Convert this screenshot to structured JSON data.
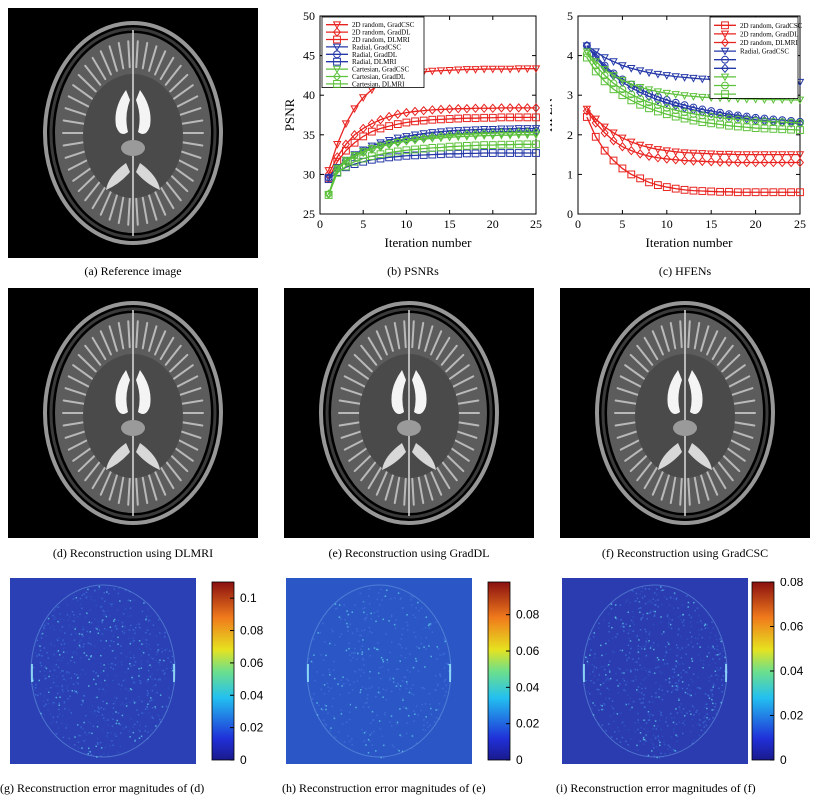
{
  "captions": {
    "a": "(a) Reference image",
    "b": "(b) PSNRs",
    "c": "(c) HFENs",
    "d": "(d) Reconstruction using DLMRI",
    "e": "(e) Reconstruction using GradDL",
    "f": "(f) Reconstruction using GradCSC",
    "g": "(g) Reconstruction error magnitudes of (d)",
    "h": "(h) Reconstruction error magnitudes of (e)",
    "i": "(i) Reconstruction error magnitudes of (f)"
  },
  "colors": {
    "red": "#e8231f",
    "blue": "#2438a8",
    "green": "#5cc13a"
  },
  "colorbars": {
    "g": {
      "ticks": [
        "0.1",
        "0.08",
        "0.06",
        "0.04",
        "0.02",
        "0"
      ],
      "max": 0.11
    },
    "h": {
      "ticks": [
        "0.08",
        "0.06",
        "0.04",
        "0.02",
        "0"
      ],
      "max": 0.098
    },
    "i": {
      "ticks": [
        "0.08",
        "0.06",
        "0.04",
        "0.02",
        "0"
      ],
      "max": 0.08
    }
  },
  "chart_data": [
    {
      "type": "line",
      "xlabel": "Iteration number",
      "ylabel": "PSNR",
      "xlim": [
        0,
        25
      ],
      "ylim": [
        25,
        50
      ],
      "xticks": [
        "0",
        "5",
        "10",
        "15",
        "20",
        "25"
      ],
      "yticks": [
        "25",
        "30",
        "35",
        "40",
        "45",
        "50"
      ],
      "legend_position": "top-left",
      "x": [
        1,
        2,
        3,
        4,
        5,
        6,
        7,
        8,
        9,
        10,
        11,
        12,
        13,
        14,
        15,
        16,
        17,
        18,
        19,
        20,
        21,
        22,
        23,
        24,
        25
      ],
      "series": [
        {
          "name": "2D random, GradCSC",
          "color": "red",
          "marker": "triangle-down",
          "values": [
            30.5,
            33.8,
            36.4,
            38.3,
            39.7,
            40.7,
            41.4,
            41.9,
            42.3,
            42.6,
            42.8,
            42.95,
            43.05,
            43.1,
            43.15,
            43.2,
            43.25,
            43.25,
            43.3,
            43.3,
            43.3,
            43.3,
            43.35,
            43.35,
            43.35
          ]
        },
        {
          "name": "2D random, GradDL",
          "color": "red",
          "marker": "diamond",
          "values": [
            30.0,
            32.2,
            33.8,
            35.0,
            35.8,
            36.4,
            36.9,
            37.3,
            37.6,
            37.8,
            37.95,
            38.05,
            38.15,
            38.2,
            38.25,
            38.3,
            38.3,
            38.35,
            38.35,
            38.35,
            38.4,
            38.4,
            38.4,
            38.4,
            38.4
          ]
        },
        {
          "name": "2D random, DLMRI",
          "color": "red",
          "marker": "square",
          "values": [
            29.5,
            31.6,
            33.0,
            34.0,
            34.8,
            35.4,
            35.8,
            36.1,
            36.35,
            36.55,
            36.7,
            36.8,
            36.9,
            36.95,
            37.0,
            37.05,
            37.1,
            37.1,
            37.15,
            37.15,
            37.2,
            37.2,
            37.2,
            37.2,
            37.2
          ]
        },
        {
          "name": "Radial, GradCSC",
          "color": "blue",
          "marker": "triangle-down",
          "values": [
            29.6,
            30.9,
            31.8,
            32.5,
            33.1,
            33.6,
            34.0,
            34.3,
            34.6,
            34.8,
            35.0,
            35.15,
            35.3,
            35.4,
            35.5,
            35.55,
            35.6,
            35.65,
            35.7,
            35.7,
            35.75,
            35.75,
            35.8,
            35.8,
            35.8
          ]
        },
        {
          "name": "Radial, GradDL",
          "color": "blue",
          "marker": "circle",
          "values": [
            29.6,
            30.8,
            31.7,
            32.4,
            32.9,
            33.3,
            33.7,
            34.0,
            34.2,
            34.45,
            34.6,
            34.75,
            34.9,
            35.0,
            35.1,
            35.15,
            35.2,
            35.25,
            35.3,
            35.35,
            35.4,
            35.4,
            35.45,
            35.45,
            35.5
          ]
        },
        {
          "name": "Radial, DLMRI",
          "color": "blue",
          "marker": "square",
          "values": [
            29.4,
            30.3,
            30.9,
            31.3,
            31.6,
            31.85,
            32.0,
            32.15,
            32.25,
            32.35,
            32.4,
            32.45,
            32.5,
            32.55,
            32.6,
            32.6,
            32.65,
            32.65,
            32.7,
            32.7,
            32.7,
            32.7,
            32.7,
            32.7,
            32.7
          ]
        },
        {
          "name": "Cartesian, GradCSC",
          "color": "green",
          "marker": "triangle-down",
          "values": [
            27.5,
            30.8,
            31.8,
            32.4,
            32.9,
            33.3,
            33.6,
            33.85,
            34.05,
            34.2,
            34.35,
            34.45,
            34.55,
            34.6,
            34.7,
            34.75,
            34.8,
            34.85,
            34.9,
            34.9,
            34.95,
            34.95,
            35.0,
            35.0,
            35.0
          ]
        },
        {
          "name": "Cartesian, GradDL",
          "color": "green",
          "marker": "diamond",
          "values": [
            27.5,
            30.6,
            31.6,
            32.3,
            32.8,
            33.2,
            33.5,
            33.8,
            34.05,
            34.25,
            34.4,
            34.55,
            34.7,
            34.8,
            34.9,
            35.0,
            35.05,
            35.1,
            35.15,
            35.2,
            35.25,
            35.25,
            35.3,
            35.3,
            35.3
          ]
        },
        {
          "name": "Cartesian, DLMRI",
          "color": "green",
          "marker": "square",
          "values": [
            27.4,
            30.2,
            31.0,
            31.6,
            32.0,
            32.3,
            32.55,
            32.75,
            32.9,
            33.05,
            33.15,
            33.25,
            33.35,
            33.4,
            33.5,
            33.55,
            33.6,
            33.65,
            33.7,
            33.7,
            33.75,
            33.75,
            33.8,
            33.8,
            33.8
          ]
        }
      ]
    },
    {
      "type": "line",
      "xlabel": "Iteration number",
      "ylabel": "HFEN",
      "xlim": [
        0,
        25
      ],
      "ylim": [
        0,
        5
      ],
      "xticks": [
        "0",
        "5",
        "10",
        "15",
        "20",
        "25"
      ],
      "yticks": [
        "0",
        "1",
        "2",
        "3",
        "4",
        "5"
      ],
      "legend_position": "top-right",
      "x": [
        1,
        2,
        3,
        4,
        5,
        6,
        7,
        8,
        9,
        10,
        11,
        12,
        13,
        14,
        15,
        16,
        17,
        18,
        19,
        20,
        21,
        22,
        23,
        24,
        25
      ],
      "series": [
        {
          "name": "2D random, GradCSC",
          "color": "red",
          "marker": "square",
          "values": [
            2.45,
            1.95,
            1.6,
            1.35,
            1.15,
            1.0,
            0.9,
            0.8,
            0.73,
            0.68,
            0.64,
            0.61,
            0.59,
            0.58,
            0.57,
            0.56,
            0.56,
            0.55,
            0.55,
            0.55,
            0.55,
            0.55,
            0.55,
            0.55,
            0.55
          ]
        },
        {
          "name": "2D random, GradDL",
          "color": "red",
          "marker": "triangle-down",
          "values": [
            2.65,
            2.4,
            2.2,
            2.05,
            1.92,
            1.82,
            1.74,
            1.68,
            1.63,
            1.6,
            1.57,
            1.55,
            1.54,
            1.53,
            1.52,
            1.51,
            1.51,
            1.5,
            1.5,
            1.5,
            1.5,
            1.5,
            1.5,
            1.5,
            1.5
          ]
        },
        {
          "name": "2D random, DLMRI",
          "color": "red",
          "marker": "diamond",
          "values": [
            2.6,
            2.3,
            2.05,
            1.85,
            1.7,
            1.6,
            1.52,
            1.46,
            1.42,
            1.39,
            1.37,
            1.35,
            1.34,
            1.33,
            1.32,
            1.31,
            1.31,
            1.3,
            1.3,
            1.3,
            1.3,
            1.3,
            1.3,
            1.3,
            1.3
          ]
        },
        {
          "name": "Radial, GradCSC",
          "color": "blue",
          "marker": "triangle-down",
          "values": [
            4.25,
            4.1,
            3.95,
            3.85,
            3.75,
            3.68,
            3.62,
            3.57,
            3.53,
            3.5,
            3.47,
            3.45,
            3.43,
            3.41,
            3.4,
            3.39,
            3.38,
            3.37,
            3.36,
            3.36,
            3.35,
            3.35,
            3.34,
            3.34,
            3.33
          ]
        },
        {
          "name": "",
          "color": "blue",
          "marker": "circle",
          "values": [
            4.25,
            4.0,
            3.75,
            3.55,
            3.4,
            3.27,
            3.15,
            3.05,
            2.96,
            2.88,
            2.81,
            2.75,
            2.69,
            2.64,
            2.6,
            2.56,
            2.52,
            2.49,
            2.46,
            2.43,
            2.41,
            2.39,
            2.37,
            2.35,
            2.33
          ]
        },
        {
          "name": "",
          "color": "blue",
          "marker": "diamond",
          "values": [
            4.25,
            3.95,
            3.7,
            3.5,
            3.33,
            3.19,
            3.07,
            2.97,
            2.88,
            2.81,
            2.74,
            2.68,
            2.63,
            2.58,
            2.54,
            2.5,
            2.47,
            2.44,
            2.41,
            2.38,
            2.36,
            2.34,
            2.32,
            2.3,
            2.28
          ]
        },
        {
          "name": "",
          "color": "green",
          "marker": "triangle-down",
          "values": [
            4.1,
            3.85,
            3.65,
            3.5,
            3.38,
            3.28,
            3.2,
            3.14,
            3.09,
            3.05,
            3.02,
            2.99,
            2.97,
            2.95,
            2.94,
            2.93,
            2.92,
            2.91,
            2.9,
            2.9,
            2.89,
            2.89,
            2.89,
            2.88,
            2.88
          ]
        },
        {
          "name": "",
          "color": "green",
          "marker": "circle",
          "values": [
            4.05,
            3.75,
            3.5,
            3.3,
            3.15,
            3.02,
            2.91,
            2.82,
            2.75,
            2.68,
            2.62,
            2.57,
            2.53,
            2.49,
            2.46,
            2.43,
            2.41,
            2.39,
            2.37,
            2.35,
            2.34,
            2.33,
            2.32,
            2.31,
            2.3
          ]
        },
        {
          "name": "",
          "color": "green",
          "marker": "square",
          "values": [
            3.95,
            3.6,
            3.35,
            3.15,
            3.0,
            2.87,
            2.76,
            2.67,
            2.59,
            2.52,
            2.46,
            2.41,
            2.36,
            2.32,
            2.29,
            2.26,
            2.23,
            2.21,
            2.19,
            2.17,
            2.16,
            2.15,
            2.14,
            2.13,
            2.12
          ]
        }
      ],
      "legend_visible_names": [
        "2D random, GradCSC",
        "2D random, GradDL",
        "2D random, DLMRI",
        "Radial, GradCSC"
      ]
    }
  ]
}
